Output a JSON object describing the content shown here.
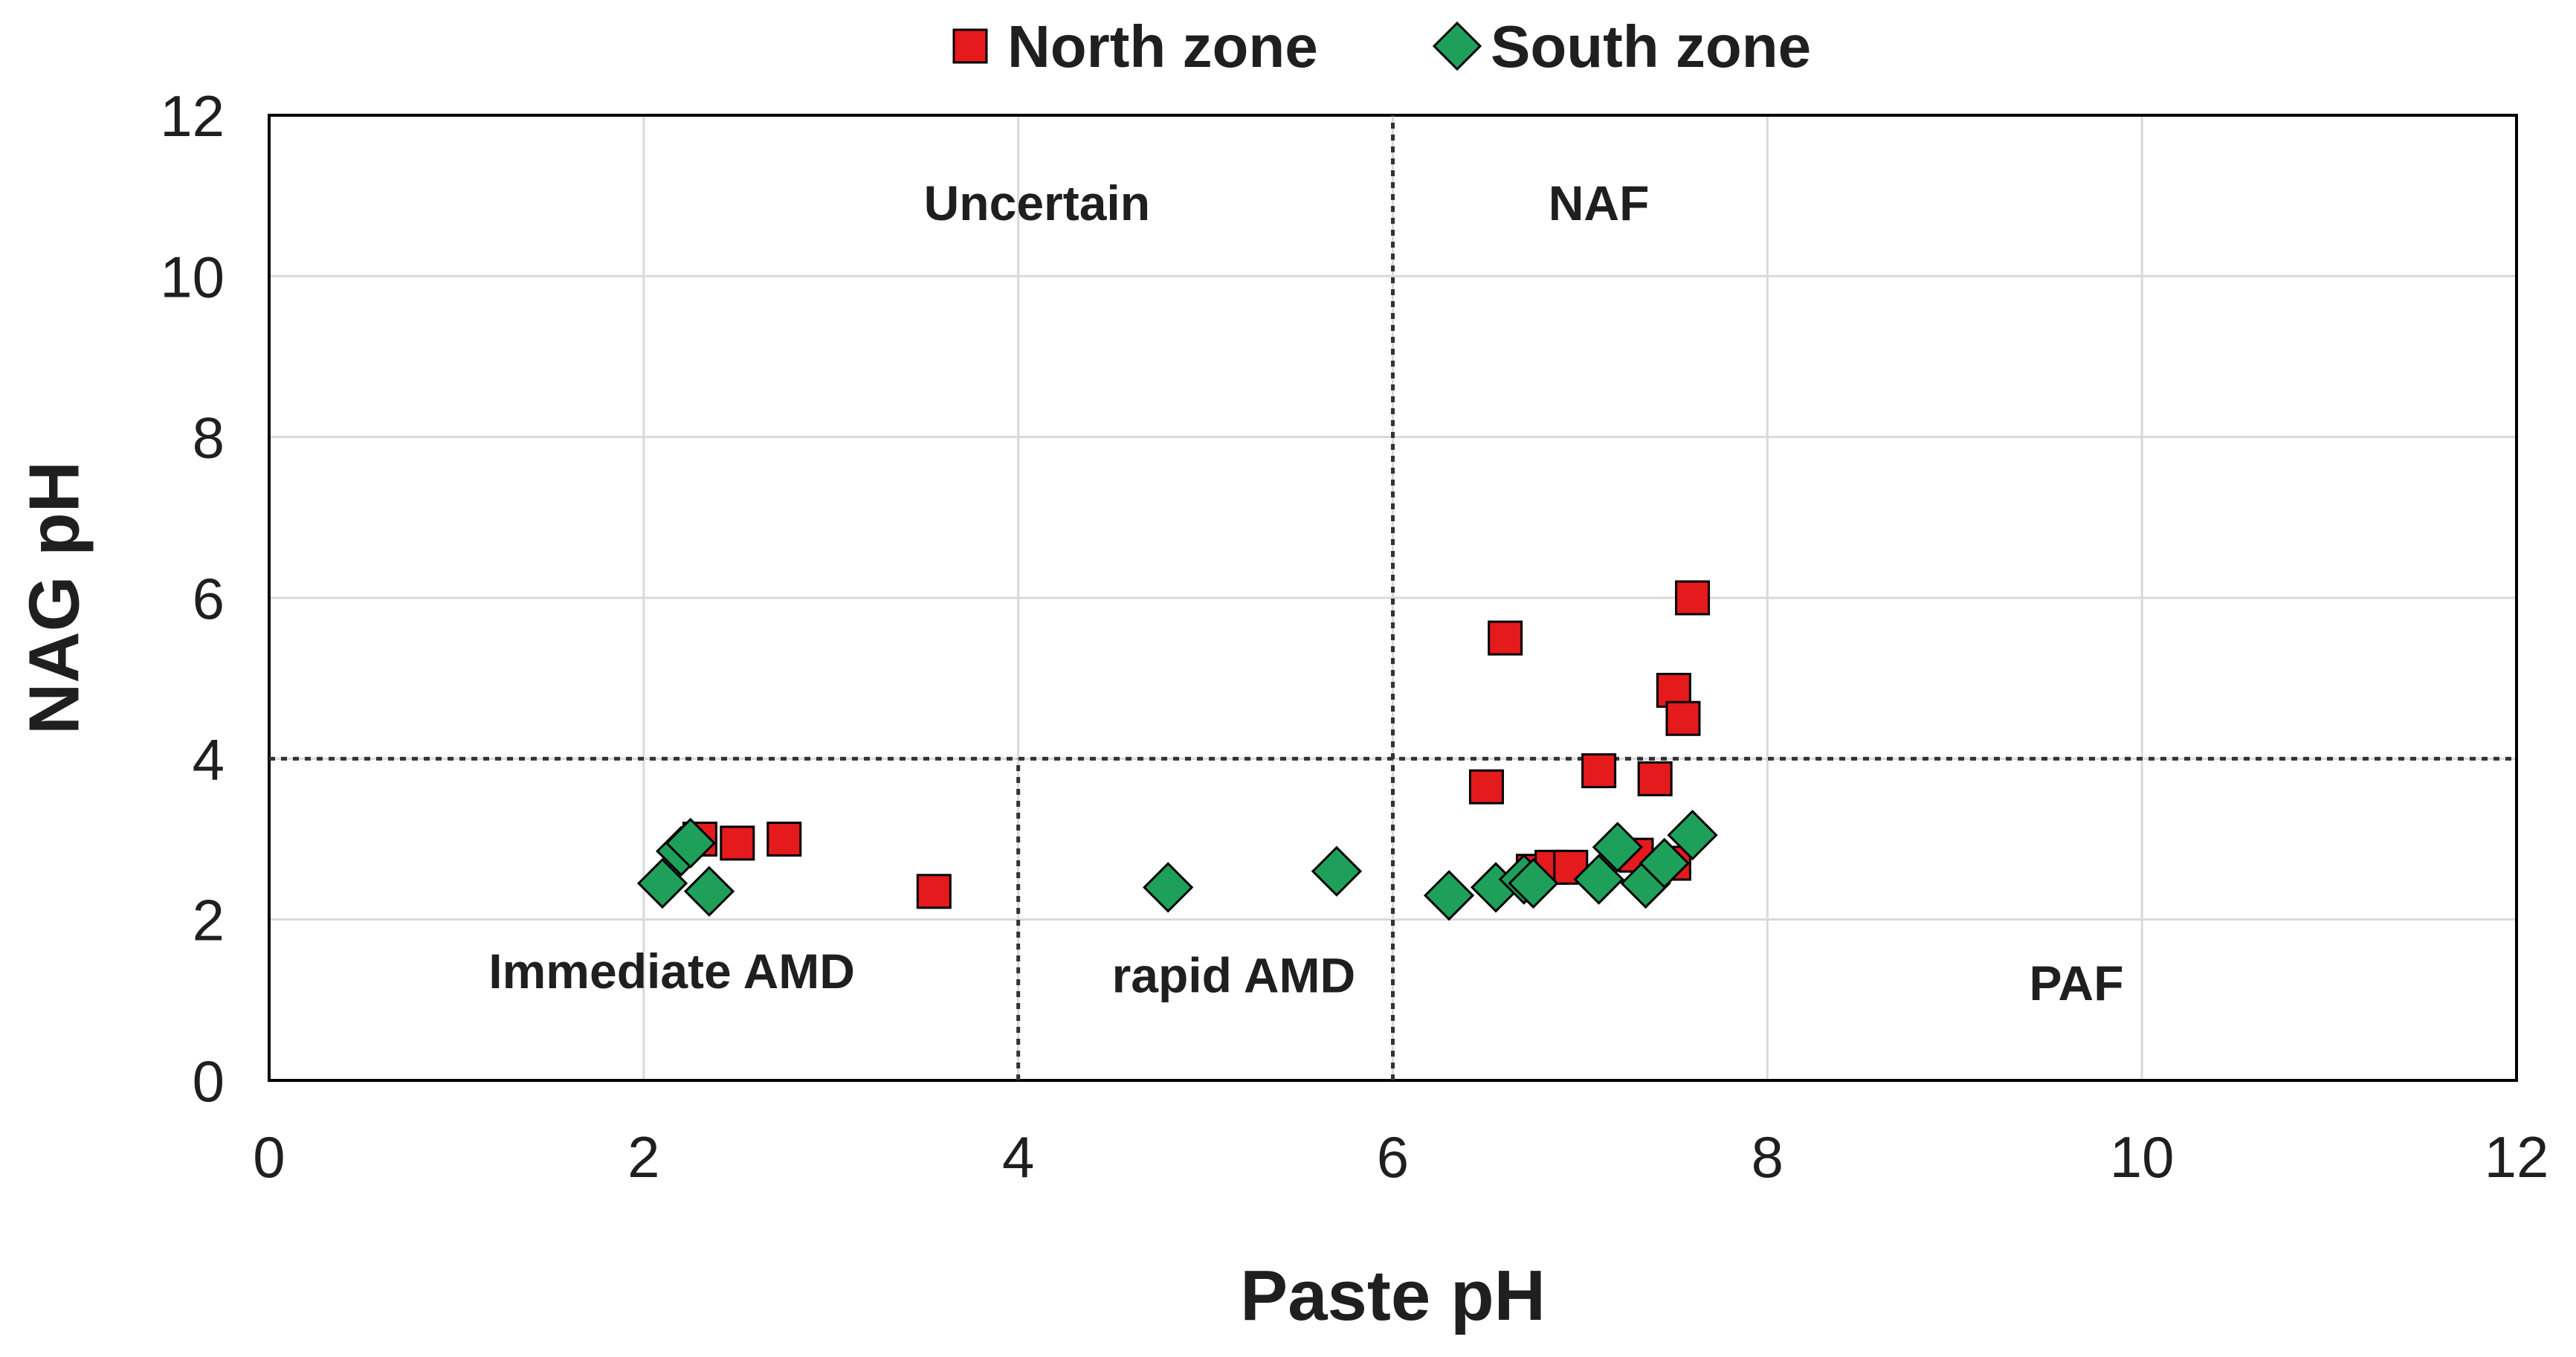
{
  "chart_data": {
    "type": "scatter",
    "xlabel": "Paste pH",
    "ylabel": "NAG pH",
    "xlim": [
      0,
      12
    ],
    "ylim": [
      0,
      12
    ],
    "xticks": [
      0,
      2,
      4,
      6,
      8,
      10,
      12
    ],
    "yticks": [
      0,
      2,
      4,
      6,
      8,
      10,
      12
    ],
    "grid": true,
    "legend_position": "top-center",
    "reference_lines": [
      {
        "orientation": "vertical",
        "x": 6,
        "y_from": 0,
        "y_to": 12
      },
      {
        "orientation": "vertical",
        "x": 4,
        "y_from": 0,
        "y_to": 4
      },
      {
        "orientation": "horizontal",
        "y": 4,
        "x_from": 0,
        "x_to": 12
      }
    ],
    "regions": [
      {
        "label": "Uncertain",
        "x": 4.1,
        "y": 10.9
      },
      {
        "label": "NAF",
        "x": 7.1,
        "y": 10.9
      },
      {
        "label": "Immediate AMD",
        "x": 2.15,
        "y": 1.35
      },
      {
        "label": "rapid AMD",
        "x": 5.15,
        "y": 1.3
      },
      {
        "label": "PAF",
        "x": 9.65,
        "y": 1.2
      }
    ],
    "series": [
      {
        "name": "North zone",
        "marker": "square",
        "color": "#e41a1c",
        "points": [
          {
            "x": 2.3,
            "y": 3.0
          },
          {
            "x": 2.5,
            "y": 2.95
          },
          {
            "x": 2.75,
            "y": 3.0
          },
          {
            "x": 3.55,
            "y": 2.35
          },
          {
            "x": 6.5,
            "y": 3.65
          },
          {
            "x": 6.6,
            "y": 5.5
          },
          {
            "x": 6.75,
            "y": 2.6
          },
          {
            "x": 6.85,
            "y": 2.65
          },
          {
            "x": 6.95,
            "y": 2.65
          },
          {
            "x": 7.1,
            "y": 3.85
          },
          {
            "x": 7.3,
            "y": 2.8
          },
          {
            "x": 7.4,
            "y": 3.75
          },
          {
            "x": 7.5,
            "y": 2.7
          },
          {
            "x": 7.5,
            "y": 4.85
          },
          {
            "x": 7.55,
            "y": 4.5
          },
          {
            "x": 7.6,
            "y": 6.0
          }
        ]
      },
      {
        "name": "South zone",
        "marker": "diamond",
        "color": "#1fa05a",
        "points": [
          {
            "x": 2.1,
            "y": 2.45
          },
          {
            "x": 2.2,
            "y": 2.85
          },
          {
            "x": 2.25,
            "y": 2.95
          },
          {
            "x": 2.35,
            "y": 2.35
          },
          {
            "x": 4.8,
            "y": 2.4
          },
          {
            "x": 5.7,
            "y": 2.6
          },
          {
            "x": 6.3,
            "y": 2.3
          },
          {
            "x": 6.55,
            "y": 2.4
          },
          {
            "x": 6.7,
            "y": 2.5
          },
          {
            "x": 6.75,
            "y": 2.45
          },
          {
            "x": 7.1,
            "y": 2.5
          },
          {
            "x": 7.2,
            "y": 2.9
          },
          {
            "x": 7.35,
            "y": 2.45
          },
          {
            "x": 7.45,
            "y": 2.7
          },
          {
            "x": 7.6,
            "y": 3.05
          }
        ]
      }
    ]
  }
}
